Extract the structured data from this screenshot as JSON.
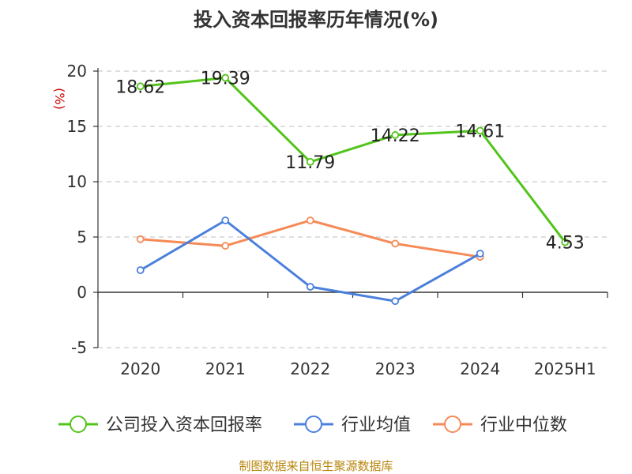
{
  "chart_data": {
    "type": "line",
    "title": "投入资本回报率历年情况(%)",
    "ylabel": "(%)",
    "categories": [
      "2020",
      "2021",
      "2022",
      "2023",
      "2024",
      "2025H1"
    ],
    "ylim": [
      -5,
      20
    ],
    "yticks": [
      "20",
      "15",
      "10",
      "5",
      "0",
      "-5"
    ],
    "grid": true,
    "legend_position": "bottom",
    "series": [
      {
        "name": "公司投入资本回报率",
        "color": "#52c41a",
        "values": [
          18.62,
          19.39,
          11.79,
          14.22,
          14.61,
          4.53
        ],
        "labels": [
          "18.62",
          "19.39",
          "11.79",
          "14.22",
          "14.61",
          "4.53"
        ]
      },
      {
        "name": "行业均值",
        "color": "#4a7fdc",
        "values": [
          2.0,
          6.5,
          0.5,
          -0.8,
          3.5,
          null
        ]
      },
      {
        "name": "行业中位数",
        "color": "#f58a57",
        "values": [
          4.8,
          4.2,
          6.5,
          4.4,
          3.2,
          null
        ]
      }
    ],
    "source": "制图数据来自恒生聚源数据库"
  }
}
